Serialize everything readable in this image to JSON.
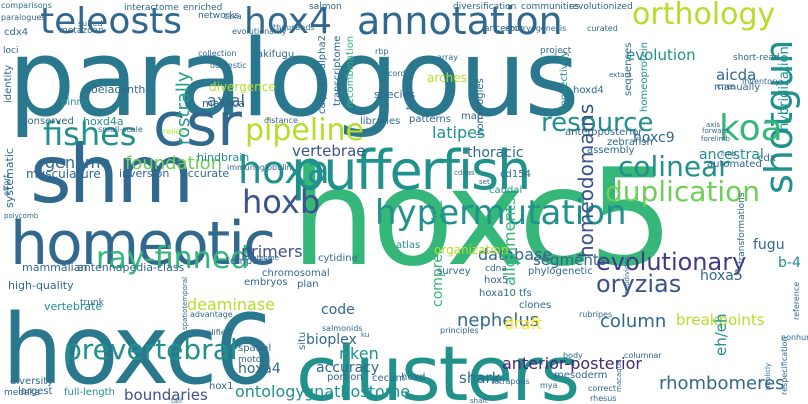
{
  "palette": {
    "dark_teal": "#2a788e",
    "blue": "#31688e",
    "navy": "#3b528b",
    "indigo": "#443983",
    "purple": "#482878",
    "dark": "#440154",
    "teal": "#21918c",
    "green_teal": "#1f9e89",
    "green": "#35b779",
    "light_green": "#6ece58",
    "lime": "#b5de2b",
    "yellow": "#fde725"
  },
  "words": [
    {
      "text": "paralogous",
      "color": "dark_teal",
      "vertical": false
    },
    {
      "text": "hoxc5",
      "color": "green",
      "vertical": false
    },
    {
      "text": "hoxc6",
      "color": "dark_teal",
      "vertical": false
    },
    {
      "text": "clusters",
      "color": "teal",
      "vertical": false
    },
    {
      "text": "shm",
      "color": "blue",
      "vertical": false
    },
    {
      "text": "homeotic",
      "color": "blue",
      "vertical": false
    },
    {
      "text": "pufferfish",
      "color": "teal",
      "vertical": false
    },
    {
      "text": "csr",
      "color": "blue",
      "vertical": false
    },
    {
      "text": "teleosts",
      "color": "blue",
      "vertical": false
    },
    {
      "text": "hox4",
      "color": "blue",
      "vertical": false
    },
    {
      "text": "annotation",
      "color": "blue",
      "vertical": false
    },
    {
      "text": "orthology",
      "color": "lime",
      "vertical": false
    },
    {
      "text": "hypermutation",
      "color": "teal",
      "vertical": false
    },
    {
      "text": "shotgun",
      "color": "teal",
      "vertical": true
    },
    {
      "text": "hoxa",
      "color": "teal",
      "vertical": false
    },
    {
      "text": "hoxb",
      "color": "navy",
      "vertical": false
    },
    {
      "text": "koa",
      "color": "green",
      "vertical": false
    },
    {
      "text": "pipeline",
      "color": "lime",
      "vertical": false
    },
    {
      "text": "resource",
      "color": "teal",
      "vertical": false
    },
    {
      "text": "colinear",
      "color": "teal",
      "vertical": false
    },
    {
      "text": "duplication",
      "color": "light_green",
      "vertical": false
    },
    {
      "text": "fishes",
      "color": "teal",
      "vertical": false
    },
    {
      "text": "ray-finned",
      "color": "green",
      "vertical": false
    },
    {
      "text": "prevertebral",
      "color": "teal",
      "vertical": false
    },
    {
      "text": "evolutionary",
      "color": "indigo",
      "vertical": false
    },
    {
      "text": "oryzias",
      "color": "navy",
      "vertical": false
    },
    {
      "text": "homeodomains",
      "color": "navy",
      "vertical": true
    },
    {
      "text": "nephelus",
      "color": "blue",
      "vertical": false
    },
    {
      "text": "foundation",
      "color": "light_green",
      "vertical": false
    },
    {
      "text": "genome",
      "color": "blue",
      "vertical": false
    },
    {
      "text": "axial",
      "color": "blue",
      "vertical": false
    },
    {
      "text": "rostrally",
      "color": "green_teal",
      "vertical": true
    },
    {
      "text": "latipes",
      "color": "teal",
      "vertical": false
    },
    {
      "text": "vertebrae",
      "color": "navy",
      "vertical": false
    },
    {
      "text": "primers",
      "color": "navy",
      "vertical": false
    },
    {
      "text": "database",
      "color": "blue",
      "vertical": false
    },
    {
      "text": "segments",
      "color": "blue",
      "vertical": false
    },
    {
      "text": "column",
      "color": "blue",
      "vertical": false
    },
    {
      "text": "riken",
      "color": "teal",
      "vertical": false
    },
    {
      "text": "shark",
      "color": "blue",
      "vertical": false
    },
    {
      "text": "rhombomeres",
      "color": "blue",
      "vertical": false
    },
    {
      "text": "ontology",
      "color": "teal",
      "vertical": false
    },
    {
      "text": "gnathostome",
      "color": "teal",
      "vertical": false
    },
    {
      "text": "anterior-posterior",
      "color": "purple",
      "vertical": false
    },
    {
      "text": "boundaries",
      "color": "navy",
      "vertical": false
    },
    {
      "text": "hoxa4",
      "color": "blue",
      "vertical": false
    },
    {
      "text": "bioplex",
      "color": "blue",
      "vertical": false
    },
    {
      "text": "deaminase",
      "color": "lime",
      "vertical": false
    },
    {
      "text": "draft",
      "color": "yellow",
      "vertical": false
    },
    {
      "text": "evolution",
      "color": "teal",
      "vertical": false
    },
    {
      "text": "aicda",
      "color": "blue",
      "vertical": false
    },
    {
      "text": "hoxc9",
      "color": "blue",
      "vertical": false
    },
    {
      "text": "thoracic",
      "color": "blue",
      "vertical": false
    },
    {
      "text": "breakpoints",
      "color": "lime",
      "vertical": false
    },
    {
      "text": "ancestral",
      "color": "teal",
      "vertical": false
    },
    {
      "text": "alignments",
      "color": "green",
      "vertical": true
    },
    {
      "text": "comprehensive",
      "color": "green",
      "vertical": true
    },
    {
      "text": "code",
      "color": "blue",
      "vertical": false
    },
    {
      "text": "accuracy",
      "color": "blue",
      "vertical": false
    },
    {
      "text": "fugu",
      "color": "blue",
      "vertical": false
    },
    {
      "text": "hoxa5",
      "color": "blue",
      "vertical": false
    },
    {
      "text": "b-4",
      "color": "teal",
      "vertical": false
    },
    {
      "text": "eh/eh",
      "color": "teal",
      "vertical": true
    },
    {
      "text": "hybridization",
      "color": "teal",
      "vertical": true
    },
    {
      "text": "divergence",
      "color": "lime",
      "vertical": false
    },
    {
      "text": "macaca",
      "color": "blue",
      "vertical": false
    },
    {
      "text": "musculature",
      "color": "blue",
      "vertical": false
    },
    {
      "text": "inversion",
      "color": "blue",
      "vertical": false
    },
    {
      "text": "accurate",
      "color": "blue",
      "vertical": false
    },
    {
      "text": "hindbrain",
      "color": "teal",
      "vertical": false
    },
    {
      "text": "mammalian",
      "color": "blue",
      "vertical": false
    },
    {
      "text": "antennapedia-class",
      "color": "blue",
      "vertical": false
    },
    {
      "text": "systematic",
      "color": "blue",
      "vertical": true
    },
    {
      "text": "high-quality",
      "color": "blue",
      "vertical": false
    },
    {
      "text": "vertebrate",
      "color": "teal",
      "vertical": false
    },
    {
      "text": "conserved",
      "color": "blue",
      "vertical": false
    },
    {
      "text": "hoxd4a",
      "color": "teal",
      "vertical": false
    },
    {
      "text": "coelacanth",
      "color": "blue",
      "vertical": false
    },
    {
      "text": "cdx4",
      "color": "blue",
      "vertical": false
    },
    {
      "text": "pinna",
      "color": "teal",
      "vertical": false
    },
    {
      "text": "identity",
      "color": "blue",
      "vertical": true
    },
    {
      "text": "diversity",
      "color": "blue",
      "vertical": false
    },
    {
      "text": "largest",
      "color": "blue",
      "vertical": false
    },
    {
      "text": "medaka",
      "color": "blue",
      "vertical": false
    },
    {
      "text": "full-length",
      "color": "teal",
      "vertical": false
    },
    {
      "text": "hox1",
      "color": "blue",
      "vertical": false
    },
    {
      "text": "hox5",
      "color": "blue",
      "vertical": false
    },
    {
      "text": "hoxa10",
      "color": "blue",
      "vertical": false
    },
    {
      "text": "cdna",
      "color": "blue",
      "vertical": false
    },
    {
      "text": "tfs",
      "color": "blue",
      "vertical": false
    },
    {
      "text": "clones",
      "color": "blue",
      "vertical": false
    },
    {
      "text": "survey",
      "color": "blue",
      "vertical": false
    },
    {
      "text": "embryos",
      "color": "blue",
      "vertical": false
    },
    {
      "text": "plan",
      "color": "blue",
      "vertical": false
    },
    {
      "text": "spatial",
      "color": "blue",
      "vertical": false
    },
    {
      "text": "motor",
      "color": "blue",
      "vertical": false
    },
    {
      "text": "situ",
      "color": "blue",
      "vertical": true
    },
    {
      "text": "portion",
      "color": "blue",
      "vertical": false
    },
    {
      "text": "cecum",
      "color": "blue",
      "vertical": false
    },
    {
      "text": "hoxd",
      "color": "blue",
      "vertical": false
    },
    {
      "text": "mesoderm",
      "color": "blue",
      "vertical": false
    },
    {
      "text": "organization",
      "color": "lime",
      "vertical": false
    },
    {
      "text": "phylogenetic",
      "color": "blue",
      "vertical": false
    },
    {
      "text": "temporal",
      "color": "blue",
      "vertical": false
    },
    {
      "text": "chromosomal",
      "color": "blue",
      "vertical": false
    },
    {
      "text": "cytidine",
      "color": "blue",
      "vertical": false
    },
    {
      "text": "atlas",
      "color": "teal",
      "vertical": false
    },
    {
      "text": "caudal",
      "color": "teal",
      "vertical": false
    },
    {
      "text": "cd154",
      "color": "blue",
      "vertical": false
    },
    {
      "text": "assembly",
      "color": "blue",
      "vertical": false
    },
    {
      "text": "zebrafish",
      "color": "blue",
      "vertical": false
    },
    {
      "text": "automated",
      "color": "blue",
      "vertical": false
    },
    {
      "text": "cdx",
      "color": "blue",
      "vertical": false
    },
    {
      "text": "transformations",
      "color": "blue",
      "vertical": true
    },
    {
      "text": "homeoprotein",
      "color": "teal",
      "vertical": true
    },
    {
      "text": "connectivity",
      "color": "teal",
      "vertical": true
    },
    {
      "text": "anteroposterior",
      "color": "blue",
      "vertical": false
    },
    {
      "text": "manually",
      "color": "blue",
      "vertical": false
    },
    {
      "text": "hoxd4",
      "color": "blue",
      "vertical": false
    },
    {
      "text": "sequences",
      "color": "blue",
      "vertical": true
    },
    {
      "text": "homologies",
      "color": "blue",
      "vertical": true
    },
    {
      "text": "species",
      "color": "blue",
      "vertical": false
    },
    {
      "text": "arches",
      "color": "lime",
      "vertical": false
    },
    {
      "text": "transcriptome",
      "color": "blue",
      "vertical": true
    },
    {
      "text": "recombination",
      "color": "green",
      "vertical": true
    },
    {
      "text": "calphal/calpha2",
      "color": "blue",
      "vertical": true
    },
    {
      "text": "libraries",
      "color": "blue",
      "vertical": false
    },
    {
      "text": "patterns",
      "color": "blue",
      "vertical": false
    },
    {
      "text": "map",
      "color": "blue",
      "vertical": false
    },
    {
      "text": "takifugu",
      "color": "blue",
      "vertical": false
    },
    {
      "text": "networks",
      "color": "blue",
      "vertical": false
    },
    {
      "text": "interactome",
      "color": "blue",
      "vertical": false
    },
    {
      "text": "enriched",
      "color": "blue",
      "vertical": false
    },
    {
      "text": "salmon",
      "color": "blue",
      "vertical": false
    },
    {
      "text": "diversification",
      "color": "blue",
      "vertical": false
    },
    {
      "text": "communities",
      "color": "blue",
      "vertical": false
    },
    {
      "text": "revolutionized",
      "color": "blue",
      "vertical": false
    },
    {
      "text": "metazoan",
      "color": "blue",
      "vertical": false
    },
    {
      "text": "ancestor",
      "color": "blue",
      "vertical": false
    },
    {
      "text": "project",
      "color": "blue",
      "vertical": false
    },
    {
      "text": "short-read",
      "color": "blue",
      "vertical": false
    },
    {
      "text": "inventory",
      "color": "blue",
      "vertical": false
    },
    {
      "text": "cnes",
      "color": "blue",
      "vertical": false
    },
    {
      "text": "taxa",
      "color": "blue",
      "vertical": false
    },
    {
      "text": "thousands",
      "color": "blue",
      "vertical": false
    },
    {
      "text": "embryogenesis",
      "color": "blue",
      "vertical": false
    },
    {
      "text": "curated",
      "color": "blue",
      "vertical": false
    },
    {
      "text": "evolutionarily",
      "color": "blue",
      "vertical": false
    },
    {
      "text": "comparisons",
      "color": "blue",
      "vertical": false
    },
    {
      "text": "paralogues",
      "color": "blue",
      "vertical": false
    },
    {
      "text": "suited",
      "color": "blue",
      "vertical": false
    },
    {
      "text": "collection",
      "color": "blue",
      "vertical": false
    },
    {
      "text": "domestic",
      "color": "blue",
      "vertical": false
    },
    {
      "text": "distance",
      "color": "blue",
      "vertical": false
    },
    {
      "text": "immunoglobulin",
      "color": "blue",
      "vertical": false
    },
    {
      "text": "small-scale",
      "color": "blue",
      "vertical": false
    },
    {
      "text": "relics",
      "color": "lime",
      "vertical": false
    },
    {
      "text": "loci",
      "color": "blue",
      "vertical": false
    },
    {
      "text": "trunk",
      "color": "blue",
      "vertical": false
    },
    {
      "text": "effort",
      "color": "blue",
      "vertical": true
    },
    {
      "text": "polycomb",
      "color": "blue",
      "vertical": false
    },
    {
      "text": "proteome",
      "color": "blue",
      "vertical": false
    },
    {
      "text": "advantage",
      "color": "blue",
      "vertical": false
    },
    {
      "text": "simplified",
      "color": "blue",
      "vertical": false
    },
    {
      "text": "salmonids",
      "color": "blue",
      "vertical": false
    },
    {
      "text": "principles",
      "color": "blue",
      "vertical": false
    },
    {
      "text": "tetrapods",
      "color": "blue",
      "vertical": false
    },
    {
      "text": "correct",
      "color": "blue",
      "vertical": false
    },
    {
      "text": "rhesus",
      "color": "blue",
      "vertical": false
    },
    {
      "text": "nonhuman",
      "color": "blue",
      "vertical": false
    },
    {
      "text": "reference",
      "color": "blue",
      "vertical": true
    },
    {
      "text": "respecification",
      "color": "blue",
      "vertical": true
    },
    {
      "text": "publicly",
      "color": "blue",
      "vertical": true
    },
    {
      "text": "macaque",
      "color": "blue",
      "vertical": true
    },
    {
      "text": "spatiotemporal",
      "color": "blue",
      "vertical": true
    },
    {
      "text": "subdivides",
      "color": "blue",
      "vertical": true
    },
    {
      "text": "columnar",
      "color": "blue",
      "vertical": false
    },
    {
      "text": "body",
      "color": "blue",
      "vertical": false
    },
    {
      "text": "rubripes",
      "color": "blue",
      "vertical": false
    },
    {
      "text": "forelimb",
      "color": "blue",
      "vertical": false
    },
    {
      "text": "extant",
      "color": "blue",
      "vertical": false
    },
    {
      "text": "forward",
      "color": "blue",
      "vertical": false
    },
    {
      "text": "array",
      "color": "blue",
      "vertical": false
    },
    {
      "text": "cord",
      "color": "blue",
      "vertical": false
    },
    {
      "text": "rbp",
      "color": "blue",
      "vertical": false
    },
    {
      "text": "forests",
      "color": "blue",
      "vertical": true
    },
    {
      "text": "set",
      "color": "blue",
      "vertical": false
    },
    {
      "text": "cdnas",
      "color": "blue",
      "vertical": false
    },
    {
      "text": "mya",
      "color": "blue",
      "vertical": false
    },
    {
      "text": "shaft",
      "color": "blue",
      "vertical": false
    },
    {
      "text": "tail",
      "color": "blue",
      "vertical": false
    },
    {
      "text": "ku",
      "color": "blue",
      "vertical": false
    },
    {
      "text": "axis",
      "color": "blue",
      "vertical": false
    },
    {
      "text": "limb",
      "color": "blue",
      "vertical": false
    }
  ]
}
